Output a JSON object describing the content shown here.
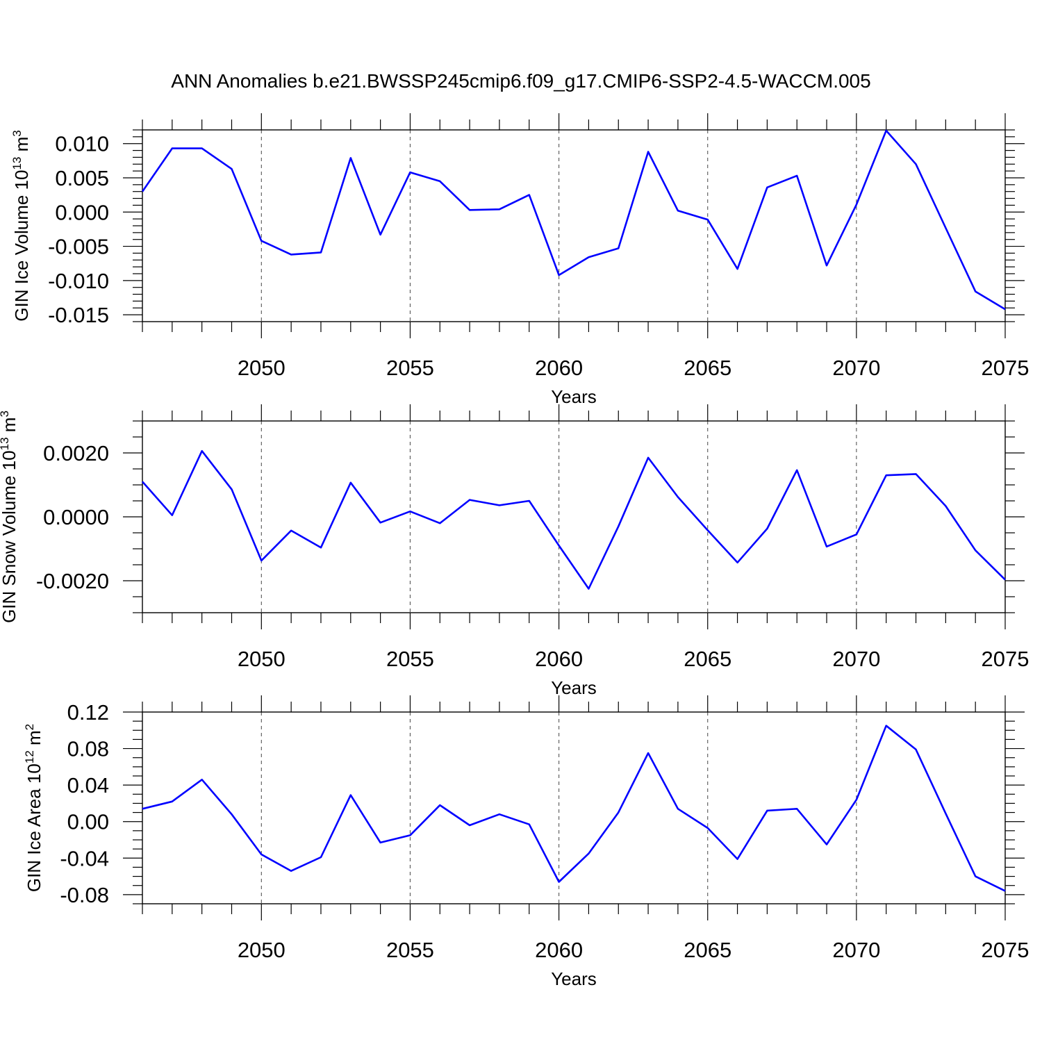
{
  "title": "ANN Anomalies b.e21.BWSSP245cmip6.f09_g17.CMIP6-SSP2-4.5-WACCM.005",
  "colors": {
    "line": "#0000ff",
    "frame": "#000000",
    "grid": "#555555"
  },
  "chart_data": [
    {
      "type": "line",
      "ylabel": "GIN Ice Volume",
      "yunit_base": "10",
      "yunit_exp": "13",
      "yunit_rest": "m",
      "yunit_rest_exp": "3",
      "xlabel": "Years",
      "xlim": [
        2046,
        2075
      ],
      "ylim": [
        -0.016,
        0.012
      ],
      "xticks": [
        2050,
        2055,
        2060,
        2065,
        2070,
        2075
      ],
      "xtick_labels": [
        "2050",
        "2055",
        "2060",
        "2065",
        "2070",
        "2075"
      ],
      "yticks": [
        0.01,
        0.005,
        0.0,
        -0.005,
        -0.01,
        -0.015
      ],
      "ytick_labels": [
        "0.010",
        "0.005",
        "0.000",
        "-0.005",
        "-0.010",
        "-0.015"
      ],
      "yminor_step": 0.001,
      "vertical_gridlines": [
        2050,
        2055,
        2060,
        2065,
        2070
      ],
      "x": [
        2046,
        2047,
        2048,
        2049,
        2050,
        2051,
        2052,
        2053,
        2054,
        2055,
        2056,
        2057,
        2058,
        2059,
        2060,
        2061,
        2062,
        2063,
        2064,
        2065,
        2066,
        2067,
        2068,
        2069,
        2070,
        2071,
        2072,
        2073,
        2074,
        2075
      ],
      "values": [
        0.003,
        0.0093,
        0.0093,
        0.0063,
        -0.0042,
        -0.0062,
        -0.0059,
        0.0079,
        -0.0033,
        0.0058,
        0.0045,
        0.0003,
        0.0004,
        0.0025,
        -0.0092,
        -0.0066,
        -0.0053,
        0.0088,
        0.0002,
        -0.0011,
        -0.0083,
        0.0036,
        0.0053,
        -0.0078,
        0.0011,
        0.0119,
        0.007,
        -0.0023,
        -0.0116,
        -0.0142
      ]
    },
    {
      "type": "line",
      "ylabel": "GIN Snow Volume",
      "yunit_base": "10",
      "yunit_exp": "13",
      "yunit_rest": "m",
      "yunit_rest_exp": "3",
      "xlabel": "Years",
      "xlim": [
        2046,
        2075
      ],
      "ylim": [
        -0.003,
        0.003
      ],
      "xticks": [
        2050,
        2055,
        2060,
        2065,
        2070,
        2075
      ],
      "xtick_labels": [
        "2050",
        "2055",
        "2060",
        "2065",
        "2070",
        "2075"
      ],
      "yticks": [
        0.002,
        0.0,
        -0.002
      ],
      "ytick_labels": [
        "0.0020",
        "0.0000",
        "-0.0020"
      ],
      "yminor_step": 0.0005,
      "vertical_gridlines": [
        2050,
        2055,
        2060,
        2065,
        2070
      ],
      "x": [
        2046,
        2047,
        2048,
        2049,
        2050,
        2051,
        2052,
        2053,
        2054,
        2055,
        2056,
        2057,
        2058,
        2059,
        2060,
        2061,
        2062,
        2063,
        2064,
        2065,
        2066,
        2067,
        2068,
        2069,
        2070,
        2071,
        2072,
        2073,
        2074,
        2075
      ],
      "values": [
        0.0011,
        5e-05,
        0.00206,
        0.00086,
        -0.00137,
        -0.00043,
        -0.00096,
        0.00107,
        -0.00018,
        0.00017,
        -0.0002,
        0.00053,
        0.00036,
        0.0005,
        -0.0009,
        -0.00225,
        -0.0003,
        0.00185,
        0.00062,
        -0.00042,
        -0.00143,
        -0.00037,
        0.00146,
        -0.00093,
        -0.00055,
        0.0013,
        0.00134,
        0.00034,
        -0.00105,
        -0.00197
      ]
    },
    {
      "type": "line",
      "ylabel": "GIN Ice Area",
      "yunit_base": "10",
      "yunit_exp": "12",
      "yunit_rest": "m",
      "yunit_rest_exp": "2",
      "xlabel": "Years",
      "xlim": [
        2046,
        2075
      ],
      "ylim": [
        -0.09,
        0.12
      ],
      "xticks": [
        2050,
        2055,
        2060,
        2065,
        2070,
        2075
      ],
      "xtick_labels": [
        "2050",
        "2055",
        "2060",
        "2065",
        "2070",
        "2075"
      ],
      "yticks": [
        0.12,
        0.08,
        0.04,
        0.0,
        -0.04,
        -0.08
      ],
      "ytick_labels": [
        "0.12",
        "0.08",
        "0.04",
        "0.00",
        "-0.04",
        "-0.08"
      ],
      "yminor_step": 0.01,
      "vertical_gridlines": [
        2050,
        2055,
        2060,
        2065,
        2070
      ],
      "x": [
        2046,
        2047,
        2048,
        2049,
        2050,
        2051,
        2052,
        2053,
        2054,
        2055,
        2056,
        2057,
        2058,
        2059,
        2060,
        2061,
        2062,
        2063,
        2064,
        2065,
        2066,
        2067,
        2068,
        2069,
        2070,
        2071,
        2072,
        2073,
        2074,
        2075
      ],
      "values": [
        0.014,
        0.022,
        0.046,
        0.008,
        -0.036,
        -0.054,
        -0.039,
        0.029,
        -0.023,
        -0.015,
        0.018,
        -0.004,
        0.008,
        -0.003,
        -0.066,
        -0.035,
        0.01,
        0.075,
        0.014,
        -0.007,
        -0.041,
        0.012,
        0.014,
        -0.025,
        0.024,
        0.105,
        0.079,
        0.009,
        -0.06,
        -0.076
      ]
    }
  ]
}
